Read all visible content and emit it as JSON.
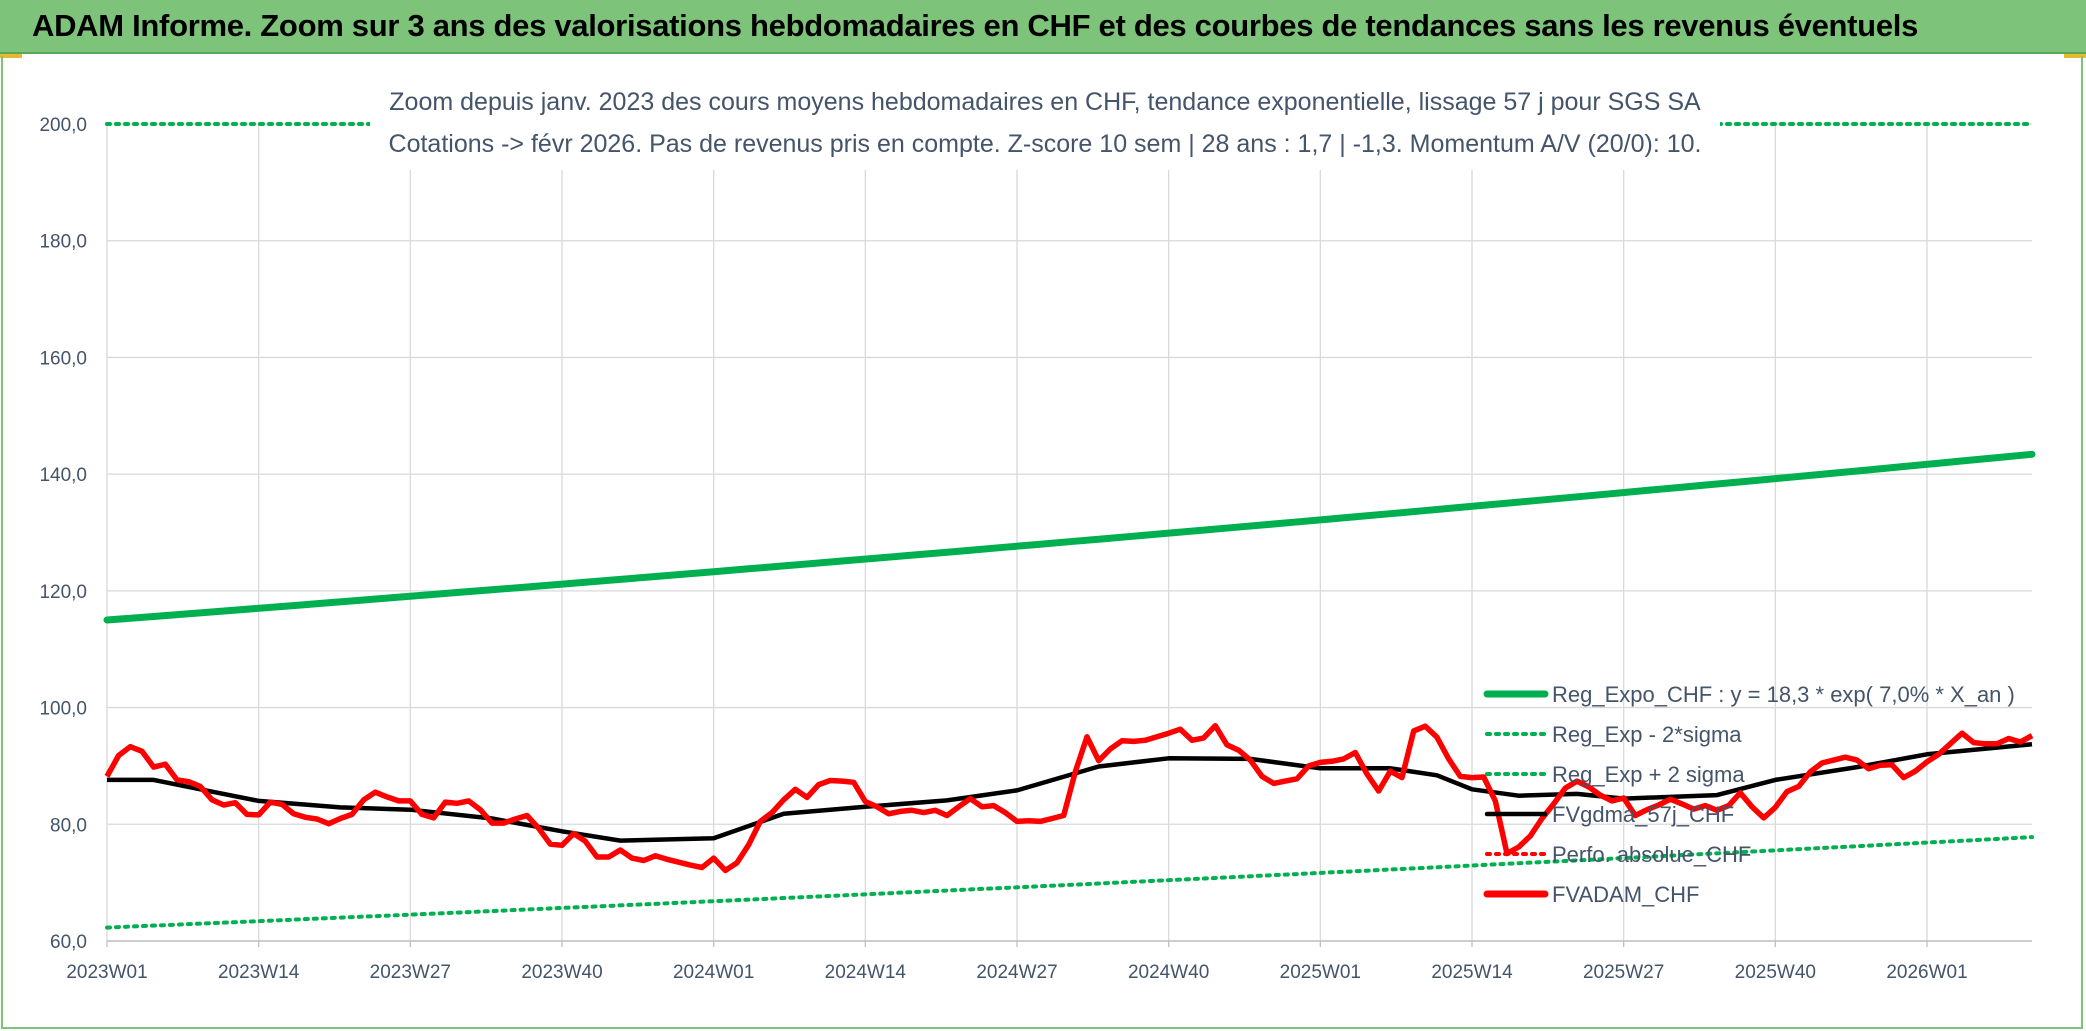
{
  "header": {
    "title": "ADAM Informe. Zoom sur 3 ans des valorisations hebdomadaires en CHF et des courbes de tendances sans les revenus éventuels"
  },
  "chart_data": {
    "type": "line",
    "title_line1": "Zoom depuis janv. 2023 des cours moyens hebdomadaires en CHF, tendance exponentielle, lissage 57 j pour SGS SA",
    "title_line2": "Cotations -> févr 2026. Pas de revenus pris en compte. Z-score 10 sem | 28 ans : 1,7 | -1,3. Momentum A/V (20/0): 10.",
    "y_ticks": [
      "60,0",
      "80,0",
      "100,0",
      "120,0",
      "140,0",
      "160,0",
      "180,0",
      "200,0"
    ],
    "ylim": [
      60,
      200
    ],
    "x_tick_labels": [
      "2023W01",
      "2023W14",
      "2023W27",
      "2023W40",
      "2024W01",
      "2024W14",
      "2024W27",
      "2024W40",
      "2025W01",
      "2025W14",
      "2025W27",
      "2025W40",
      "2026W01"
    ],
    "x_tick_index": [
      0,
      13,
      26,
      39,
      52,
      65,
      78,
      91,
      104,
      117,
      130,
      143,
      156
    ],
    "n_weeks": 165,
    "grid": true,
    "legend_position": "bottom-right",
    "legend": [
      {
        "label": "Reg_Expo_CHF : y = 18,3 * exp( 7,0% *  X_an )",
        "color": "#00b050",
        "style": "solid-thick"
      },
      {
        "label": "Reg_Exp - 2*sigma",
        "color": "#00b050",
        "style": "dotted"
      },
      {
        "label": "Reg_Exp + 2 sigma",
        "color": "#00b050",
        "style": "dotted"
      },
      {
        "label": "FVgdma_57j_CHF",
        "color": "#000000",
        "style": "solid"
      },
      {
        "label": "Perfo. absolue_CHF",
        "color": "#ff0000",
        "style": "dotted"
      },
      {
        "label": "FVADAM_CHF",
        "color": "#ff0000",
        "style": "solid-thick"
      }
    ],
    "series": [
      {
        "name": "Reg_Expo_CHF : y = 18,3 * exp( 7,0% *  X_an )",
        "color": "#00b050",
        "x": [
          0,
          165
        ],
        "values": [
          115.0,
          143.4
        ],
        "growth": "exponential"
      },
      {
        "name": "Reg_Exp - 2*sigma",
        "color": "#00b050",
        "x": [
          0,
          165
        ],
        "values": [
          62.3,
          77.8
        ],
        "growth": "exponential"
      },
      {
        "name": "Reg_Exp + 2 sigma",
        "color": "#00b050",
        "x": [
          0,
          165
        ],
        "values": [
          200.0,
          200.0
        ],
        "growth": "constant"
      },
      {
        "name": "FVgdma_57j_CHF",
        "color": "#000000",
        "x": [
          0,
          4,
          8,
          13,
          20,
          26,
          33,
          39,
          44,
          52,
          58,
          65,
          72,
          78,
          85,
          91,
          98,
          104,
          110,
          114,
          117,
          121,
          126,
          130,
          138,
          143,
          150,
          156,
          165
        ],
        "values": [
          87.6,
          87.6,
          86.0,
          84.0,
          82.9,
          82.5,
          81.0,
          78.8,
          77.2,
          77.6,
          81.8,
          83.0,
          84.1,
          85.8,
          89.9,
          91.3,
          91.2,
          89.6,
          89.6,
          88.4,
          86.0,
          84.9,
          85.2,
          84.4,
          85.0,
          87.6,
          89.8,
          92.0,
          93.7
        ]
      },
      {
        "name": "FVADAM_CHF",
        "color": "#ff0000",
        "x": [
          0,
          1,
          2,
          3,
          4,
          5,
          6,
          7,
          8,
          9,
          10,
          11,
          12,
          13,
          14,
          15,
          16,
          17,
          18,
          19,
          20,
          21,
          22,
          23,
          24,
          25,
          26,
          27,
          28,
          29,
          30,
          31,
          32,
          33,
          34,
          35,
          36,
          37,
          38,
          39,
          40,
          41,
          42,
          43,
          44,
          45,
          46,
          47,
          48,
          49,
          50,
          51,
          52,
          53,
          54,
          55,
          56,
          57,
          58,
          59,
          60,
          61,
          62,
          63,
          64,
          65,
          66,
          67,
          68,
          69,
          70,
          71,
          72,
          73,
          74,
          75,
          76,
          77,
          78,
          79,
          80,
          81,
          82,
          83,
          84,
          85,
          86,
          87,
          88,
          89,
          90,
          91,
          92,
          93,
          94,
          95,
          96,
          97,
          98,
          99,
          100,
          101,
          102,
          103,
          104,
          105,
          106,
          107,
          108,
          109,
          110,
          111,
          112,
          113,
          114,
          115,
          116,
          117,
          118,
          119,
          120,
          121,
          122,
          123,
          124,
          125,
          126,
          127,
          128,
          129,
          130,
          131,
          132,
          133,
          134,
          135,
          136,
          137,
          138,
          139,
          140,
          141,
          142,
          143,
          144,
          145,
          146,
          147,
          148,
          149,
          150,
          151,
          152,
          153,
          154,
          155,
          156,
          157,
          158,
          159,
          160,
          161,
          162,
          163,
          164,
          165
        ],
        "values": [
          88.2,
          91.8,
          93.3,
          92.5,
          89.8,
          90.3,
          87.6,
          87.3,
          86.5,
          84.2,
          83.3,
          83.7,
          81.7,
          81.6,
          83.8,
          83.4,
          81.8,
          81.2,
          80.9,
          80.1,
          81.0,
          81.7,
          84.2,
          85.5,
          84.7,
          84.0,
          84.0,
          81.7,
          81.1,
          83.8,
          83.6,
          84.0,
          82.5,
          80.2,
          80.2,
          80.9,
          81.5,
          79.3,
          76.6,
          76.4,
          78.4,
          77.1,
          74.4,
          74.4,
          75.6,
          74.2,
          73.8,
          74.6,
          74.0,
          73.5,
          73.0,
          72.6,
          74.2,
          72.1,
          73.4,
          76.5,
          80.5,
          82.0,
          84.2,
          86.0,
          84.6,
          86.8,
          87.5,
          87.4,
          87.2,
          83.9,
          83.0,
          81.8,
          82.2,
          82.4,
          82.0,
          82.4,
          81.5,
          83.0,
          84.4,
          83.0,
          83.2,
          82.0,
          80.5,
          80.6,
          80.5,
          81.0,
          81.5,
          89.0,
          95.0,
          90.9,
          92.9,
          94.3,
          94.2,
          94.4,
          95.0,
          95.6,
          96.3,
          94.4,
          94.8,
          96.9,
          93.6,
          92.7,
          91.0,
          88.2,
          87.0,
          87.4,
          87.8,
          90.0,
          90.6,
          90.8,
          91.2,
          92.3,
          88.6,
          85.7,
          89.1,
          88.0,
          96.0,
          96.8,
          94.9,
          91.2,
          88.2,
          88.0,
          88.1,
          84.0,
          75.0,
          76.1,
          78.0,
          81.0,
          83.5,
          86.2,
          87.4,
          86.4,
          85.0,
          84.0,
          84.5,
          81.5,
          82.5,
          83.3,
          84.3,
          83.5,
          82.6,
          83.2,
          82.4,
          83.2,
          85.4,
          83.0,
          81.1,
          82.9,
          85.6,
          86.5,
          89.0,
          90.5,
          91.0,
          91.5,
          91.0,
          89.5,
          90.1,
          90.2,
          88.0,
          89.1,
          90.7,
          92.0,
          93.8,
          95.6,
          94.0,
          93.8,
          93.8,
          94.7,
          94.1,
          95.2
        ]
      }
    ]
  }
}
